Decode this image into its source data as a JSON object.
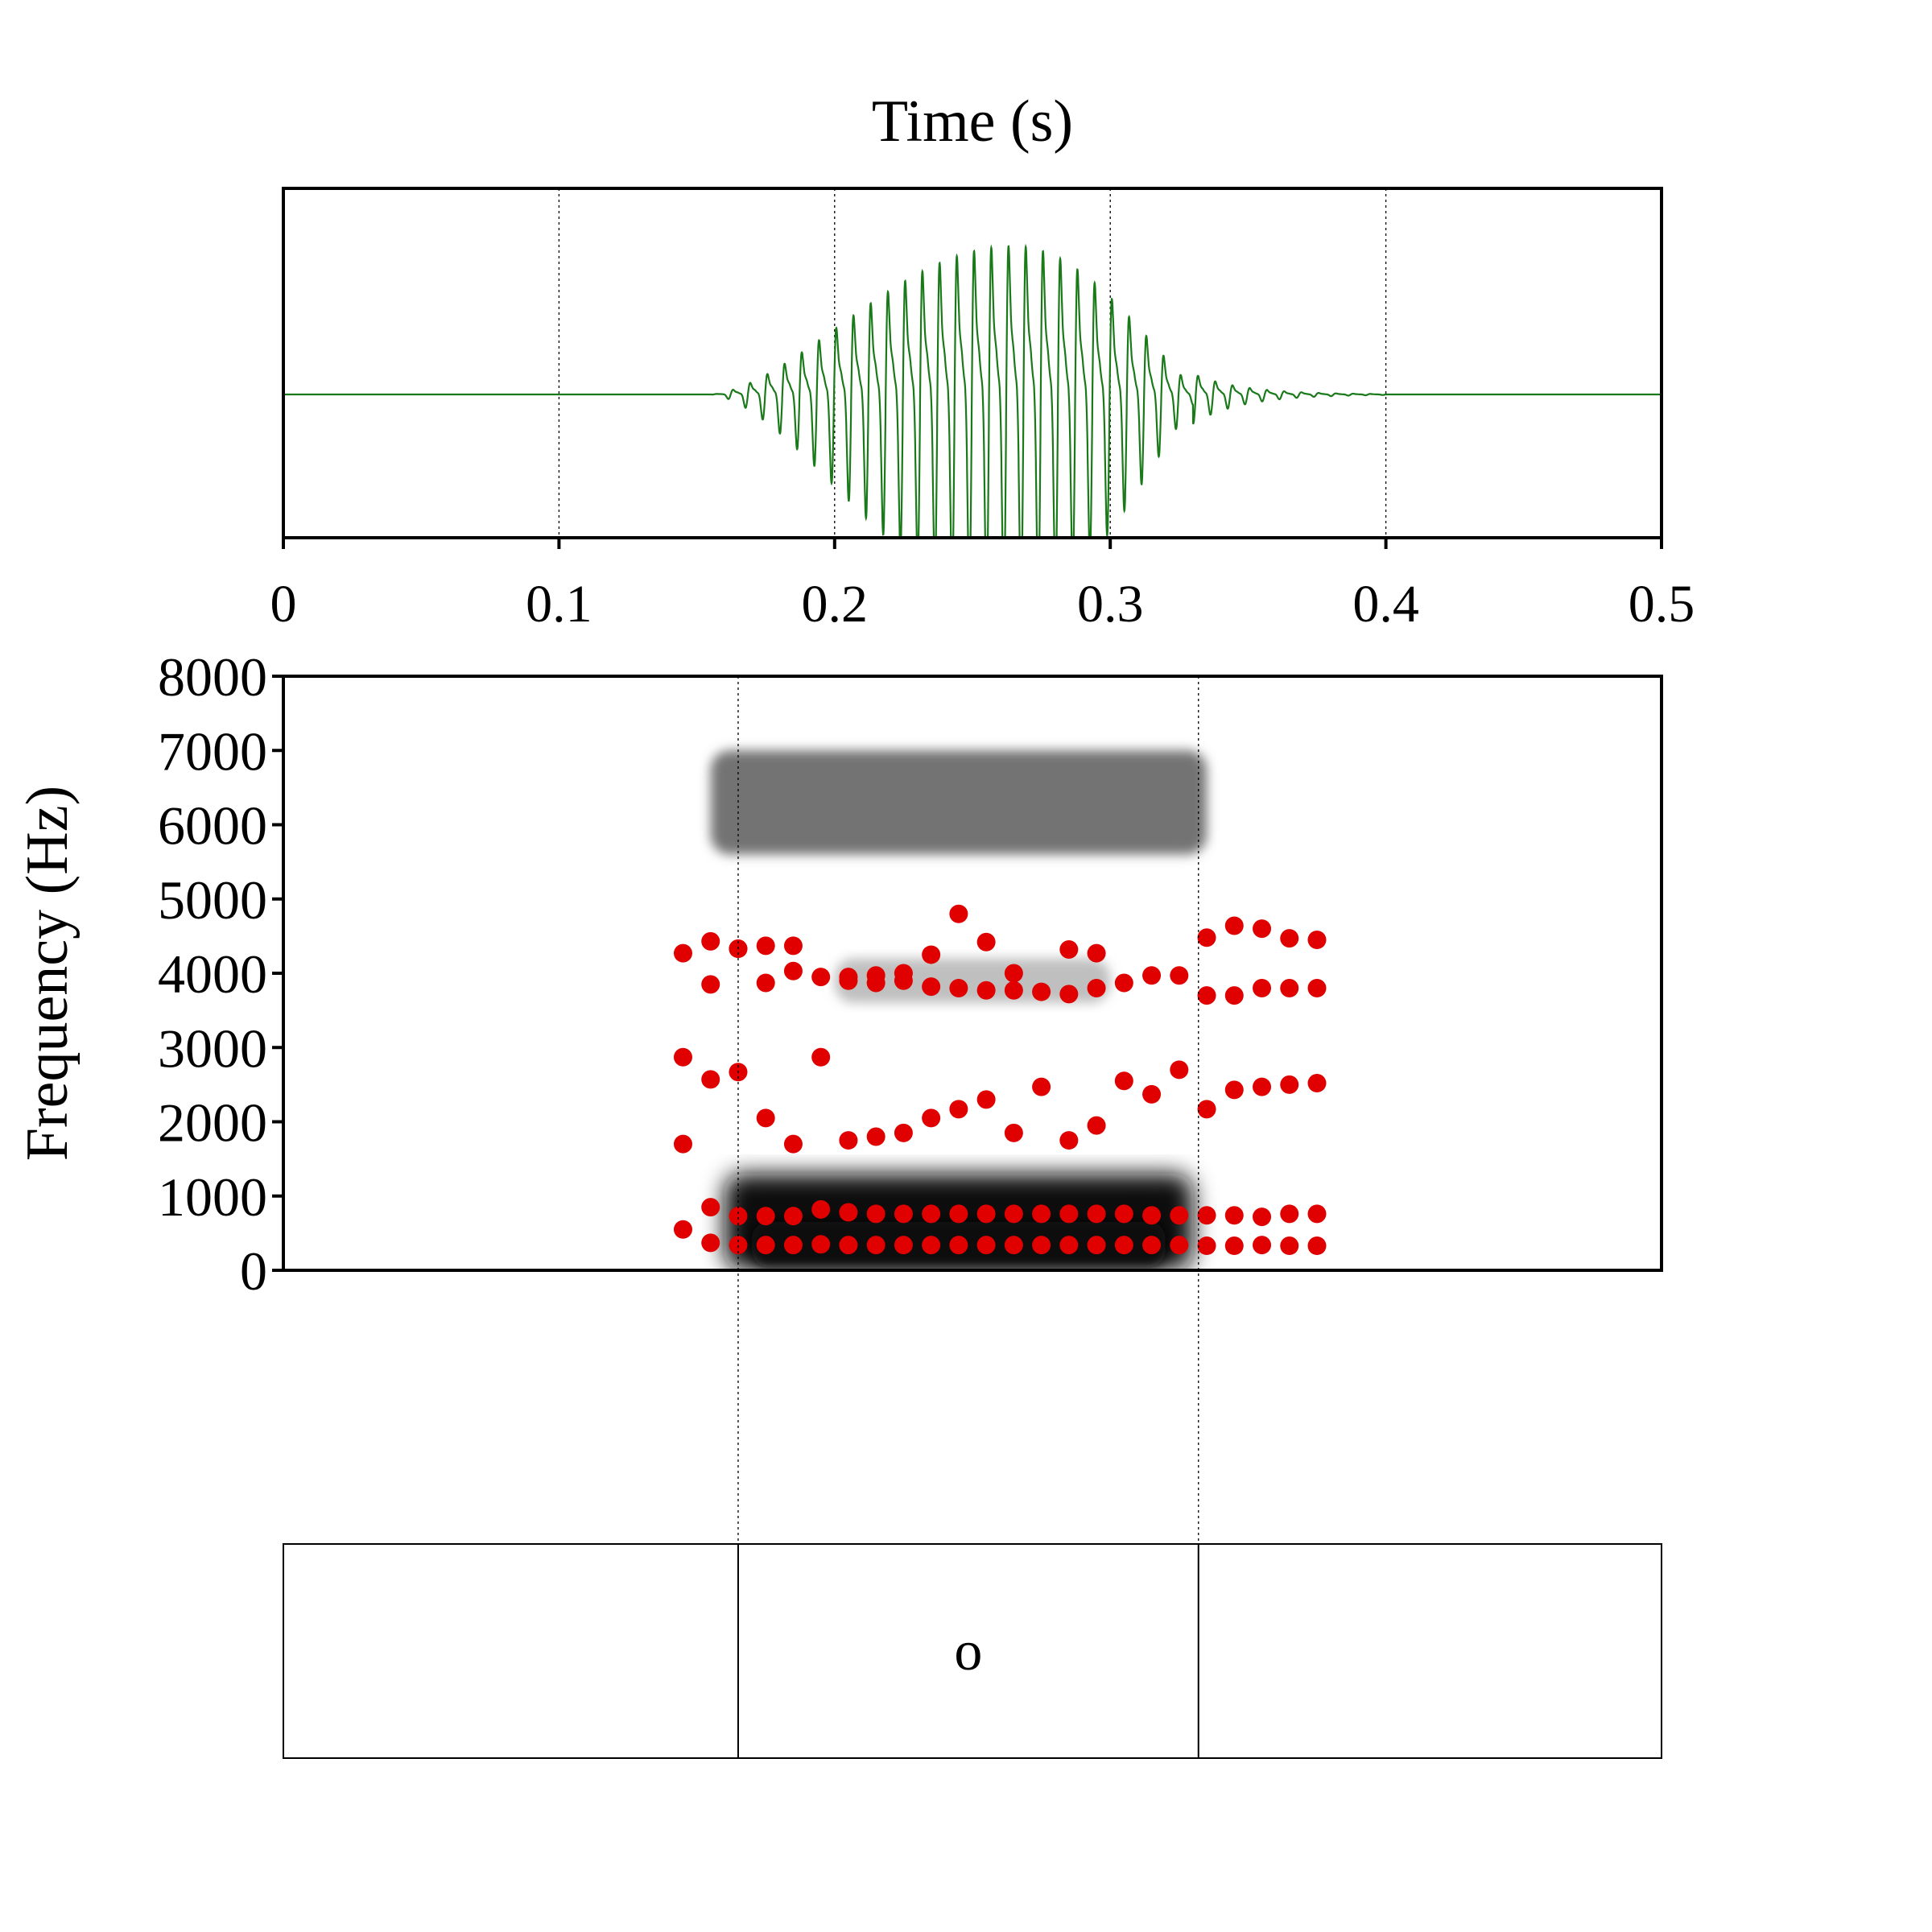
{
  "chart_data": [
    {
      "type": "line",
      "panel": "waveform",
      "title": "Time (s)",
      "xlabel": "",
      "ylabel": "",
      "xlim": [
        0,
        0.5
      ],
      "ylim": [
        -1,
        1
      ],
      "x_ticks": [
        0,
        0.1,
        0.2,
        0.3,
        0.4,
        0.5
      ],
      "x_tick_labels": [
        "0",
        "0.1",
        "0.2",
        "0.3",
        "0.4",
        "0.5"
      ],
      "grid_x": [
        0.1,
        0.2,
        0.3,
        0.4
      ],
      "color": "#1a7a1a",
      "envelope": {
        "onset": 0.155,
        "peak": 0.265,
        "offset": 0.33,
        "tail_end": 0.4,
        "peak_amplitude": 1.0,
        "f0_hz": 160
      }
    },
    {
      "type": "scatter",
      "panel": "spectrogram",
      "ylabel": "Frequency (Hz)",
      "xlim": [
        0,
        0.5
      ],
      "ylim": [
        0,
        8000
      ],
      "y_ticks": [
        0,
        1000,
        2000,
        3000,
        4000,
        5000,
        6000,
        7000,
        8000
      ],
      "y_tick_labels": [
        "0",
        "1000",
        "2000",
        "3000",
        "4000",
        "5000",
        "6000",
        "7000",
        "8000"
      ],
      "boundaries": [
        0.165,
        0.332
      ],
      "point_color": "#e00000",
      "spectrogram_bands": [
        {
          "t0": 0.16,
          "t1": 0.33,
          "f_low": 0,
          "f_high": 1300,
          "level": 0.95
        },
        {
          "t0": 0.155,
          "t1": 0.335,
          "f_low": 5600,
          "f_high": 7000,
          "level": 0.55
        },
        {
          "t0": 0.2,
          "t1": 0.3,
          "f_low": 3600,
          "f_high": 4200,
          "level": 0.25
        }
      ],
      "formant_times": [
        0.145,
        0.155,
        0.165,
        0.175,
        0.185,
        0.195,
        0.205,
        0.215,
        0.225,
        0.235,
        0.245,
        0.255,
        0.265,
        0.275,
        0.285,
        0.295,
        0.305,
        0.315,
        0.325,
        0.335,
        0.345,
        0.355,
        0.365,
        0.375
      ],
      "series": [
        {
          "values": [
            550,
            370,
            340,
            340,
            340,
            350,
            340,
            340,
            340,
            340,
            340,
            340,
            340,
            340,
            340,
            340,
            340,
            340,
            340,
            330,
            330,
            340,
            330,
            330
          ]
        },
        {
          "values": [
            1700,
            850,
            730,
            730,
            730,
            820,
            780,
            760,
            760,
            760,
            760,
            760,
            760,
            760,
            760,
            760,
            760,
            740,
            740,
            740,
            740,
            720,
            760,
            760
          ]
        },
        {
          "values": [
            2870,
            2570,
            2670,
            2050,
            1700,
            2870,
            1750,
            1800,
            1850,
            2050,
            2170,
            2300,
            1850,
            2470,
            1750,
            1950,
            2550,
            2370,
            2700,
            2170,
            2430,
            2470,
            2500,
            2520
          ]
        },
        {
          "values": [
            4270,
            4430,
            4330,
            4370,
            4030,
            3950,
            3950,
            3970,
            4000,
            4250,
            4800,
            4420,
            4000,
            3750,
            4320,
            4270,
            3870,
            3970,
            3970,
            4480,
            4640,
            4600,
            4470,
            4450
          ]
        },
        {
          "values": [
            null,
            3850,
            4330,
            3870,
            4370,
            null,
            3900,
            3870,
            3900,
            3820,
            3800,
            3770,
            3770,
            null,
            3720,
            3800,
            null,
            null,
            null,
            3700,
            3700,
            3800,
            3800,
            3800
          ]
        }
      ]
    }
  ],
  "textgrid": {
    "intervals": [
      {
        "start": 0,
        "end": 0.165,
        "label": ""
      },
      {
        "start": 0.165,
        "end": 0.332,
        "label": "o"
      },
      {
        "start": 0.332,
        "end": 0.5,
        "label": ""
      }
    ]
  }
}
